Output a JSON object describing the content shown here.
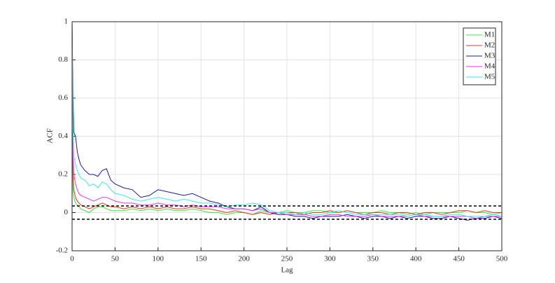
{
  "chart_data": {
    "type": "line",
    "xlabel": "Lag",
    "ylabel": "ACF",
    "x": [
      0,
      1,
      2,
      4,
      6,
      8,
      10,
      15,
      20,
      25,
      30,
      35,
      40,
      45,
      50,
      60,
      70,
      80,
      90,
      100,
      110,
      120,
      130,
      140,
      150,
      160,
      170,
      180,
      190,
      200,
      210,
      220,
      230,
      240,
      250,
      260,
      270,
      280,
      290,
      300,
      310,
      320,
      330,
      340,
      350,
      360,
      370,
      380,
      390,
      400,
      410,
      420,
      430,
      440,
      450,
      460,
      470,
      480,
      490,
      500
    ],
    "series": [
      {
        "name": "M1",
        "color": "#33ee33",
        "values": [
          1,
          0.12,
          0.08,
          0.05,
          0.04,
          0.03,
          0.02,
          0.01,
          0.0,
          0.02,
          0.03,
          0.03,
          0.02,
          0.01,
          0.01,
          0.01,
          0.02,
          0.01,
          0.02,
          0.01,
          0.02,
          0.01,
          0.01,
          0.02,
          0.01,
          0.0,
          0.0,
          -0.01,
          0.0,
          0.0,
          -0.01,
          0.01,
          0.0,
          0.0,
          0.01,
          0.0,
          0.0,
          0.01,
          0.01,
          0.0,
          0.0,
          0.01,
          0.0,
          0.0,
          0.0,
          0.01,
          0.0,
          0.0,
          -0.01,
          0.0,
          -0.01,
          0.0,
          0.0,
          0.0,
          0.0,
          0.01,
          0.0,
          0.0,
          -0.01,
          0.0
        ]
      },
      {
        "name": "M2",
        "color": "#e8341c",
        "values": [
          1,
          0.2,
          0.12,
          0.08,
          0.06,
          0.05,
          0.04,
          0.03,
          0.02,
          0.03,
          0.04,
          0.05,
          0.04,
          0.03,
          0.03,
          0.02,
          0.03,
          0.02,
          0.03,
          0.02,
          0.03,
          0.02,
          0.02,
          0.03,
          0.02,
          0.02,
          0.01,
          0.0,
          0.01,
          0.0,
          -0.01,
          0.0,
          -0.01,
          0.0,
          0.0,
          0.0,
          -0.01,
          0.0,
          0.0,
          0.01,
          0.0,
          0.01,
          0.0,
          -0.01,
          0.0,
          0.0,
          -0.01,
          0.0,
          0.0,
          -0.01,
          0.0,
          0.0,
          -0.01,
          0.0,
          0.01,
          0.01,
          0.0,
          0.01,
          0.0,
          0.0
        ]
      },
      {
        "name": "M3",
        "color": "#1a1aa8",
        "values": [
          1,
          0.62,
          0.42,
          0.4,
          0.32,
          0.28,
          0.25,
          0.22,
          0.2,
          0.2,
          0.19,
          0.22,
          0.23,
          0.17,
          0.15,
          0.13,
          0.12,
          0.08,
          0.09,
          0.12,
          0.11,
          0.1,
          0.09,
          0.1,
          0.08,
          0.06,
          0.05,
          0.03,
          0.02,
          0.02,
          0.01,
          0.03,
          0.0,
          -0.01,
          -0.01,
          -0.02,
          -0.02,
          -0.03,
          -0.02,
          -0.02,
          -0.02,
          -0.01,
          -0.02,
          -0.03,
          -0.02,
          -0.02,
          -0.03,
          -0.02,
          -0.03,
          -0.02,
          -0.02,
          -0.03,
          -0.03,
          -0.02,
          -0.03,
          -0.04,
          -0.03,
          -0.03,
          -0.02,
          -0.03
        ]
      },
      {
        "name": "M4",
        "color": "#ee33ee",
        "values": [
          1,
          0.3,
          0.2,
          0.15,
          0.12,
          0.1,
          0.09,
          0.08,
          0.07,
          0.06,
          0.07,
          0.08,
          0.08,
          0.07,
          0.06,
          0.05,
          0.05,
          0.04,
          0.04,
          0.05,
          0.04,
          0.04,
          0.03,
          0.04,
          0.03,
          0.03,
          0.03,
          0.02,
          0.02,
          0.02,
          0.01,
          0.02,
          0.0,
          0.0,
          -0.01,
          -0.01,
          -0.01,
          -0.02,
          -0.02,
          -0.01,
          -0.01,
          -0.02,
          -0.02,
          -0.02,
          -0.01,
          -0.02,
          -0.02,
          -0.02,
          -0.02,
          -0.01,
          -0.02,
          -0.02,
          -0.02,
          -0.02,
          -0.02,
          -0.02,
          -0.03,
          -0.02,
          -0.02,
          -0.02
        ]
      },
      {
        "name": "M5",
        "color": "#33eeee",
        "values": [
          1,
          0.45,
          0.3,
          0.25,
          0.22,
          0.2,
          0.18,
          0.17,
          0.14,
          0.15,
          0.13,
          0.16,
          0.15,
          0.12,
          0.1,
          0.09,
          0.07,
          0.06,
          0.07,
          0.08,
          0.07,
          0.06,
          0.07,
          0.06,
          0.05,
          0.05,
          0.04,
          0.03,
          0.04,
          0.04,
          0.05,
          0.04,
          0.01,
          0.0,
          0.0,
          -0.01,
          0.0,
          -0.01,
          -0.01,
          0.0,
          0.01,
          0.0,
          -0.01,
          -0.01,
          -0.01,
          -0.01,
          -0.01,
          -0.01,
          -0.02,
          -0.01,
          -0.01,
          -0.02,
          -0.02,
          -0.01,
          -0.01,
          -0.02,
          -0.02,
          -0.02,
          -0.01,
          -0.02
        ]
      }
    ],
    "hlines": [
      0.035,
      -0.035
    ],
    "xlim": [
      0,
      500
    ],
    "xticks": [
      0,
      50,
      100,
      150,
      200,
      250,
      300,
      350,
      400,
      450,
      500
    ],
    "ylim": [
      -0.2,
      1
    ],
    "yticks": [
      -0.2,
      0,
      0.2,
      0.4,
      0.6,
      0.8,
      1
    ],
    "grid": true,
    "legend": "upper-right"
  }
}
